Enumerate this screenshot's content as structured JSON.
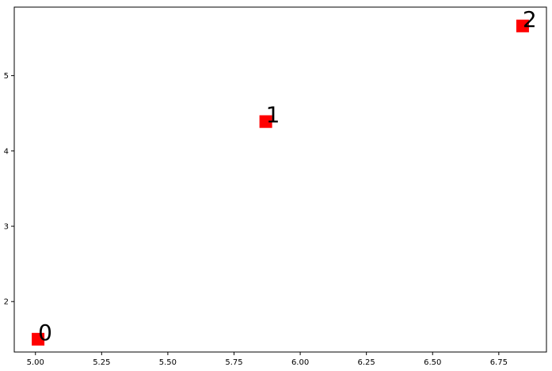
{
  "chart_data": {
    "type": "scatter",
    "title": "",
    "xlabel": "",
    "ylabel": "",
    "xlim": [
      4.92,
      6.93
    ],
    "ylim": [
      1.33,
      5.91
    ],
    "grid": false,
    "legend": false,
    "x_ticks": [
      5.0,
      5.25,
      5.5,
      5.75,
      6.0,
      6.25,
      6.5,
      6.75
    ],
    "x_tick_labels": [
      "5.00",
      "5.25",
      "5.50",
      "5.75",
      "6.00",
      "6.25",
      "6.50",
      "6.75"
    ],
    "y_ticks": [
      2,
      3,
      4,
      5
    ],
    "y_tick_labels": [
      "2",
      "3",
      "4",
      "5"
    ],
    "marker": "square",
    "marker_color": "#ff0000",
    "points": [
      {
        "x": 5.01,
        "y": 1.5,
        "label": "0"
      },
      {
        "x": 5.87,
        "y": 4.39,
        "label": "1"
      },
      {
        "x": 6.84,
        "y": 5.66,
        "label": "2"
      }
    ]
  }
}
